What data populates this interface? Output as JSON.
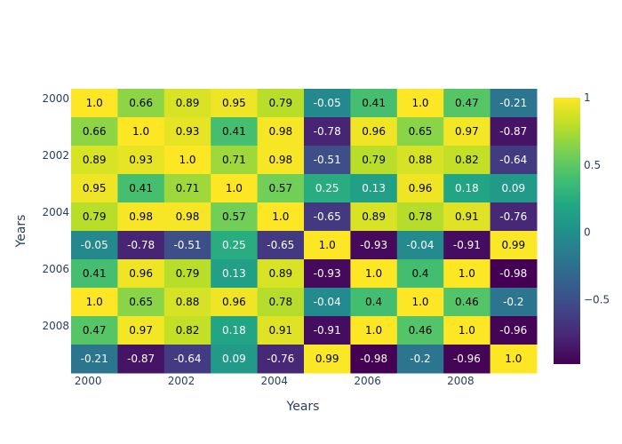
{
  "chart_data": {
    "type": "heatmap",
    "xlabel": "Years",
    "ylabel": "Years",
    "x": [
      2000,
      2001,
      2002,
      2003,
      2004,
      2005,
      2006,
      2007,
      2008,
      2009
    ],
    "y": [
      2000,
      2001,
      2002,
      2003,
      2004,
      2005,
      2006,
      2007,
      2008,
      2009
    ],
    "x_tick_labels": [
      "2000",
      "2002",
      "2004",
      "2006",
      "2008"
    ],
    "y_tick_labels": [
      "2000",
      "2002",
      "2004",
      "2006",
      "2008"
    ],
    "z_display": [
      [
        "1.0",
        "0.66",
        "0.89",
        "0.95",
        "0.79",
        "-0.05",
        "0.41",
        "1.0",
        "0.47",
        "-0.21"
      ],
      [
        "0.66",
        "1.0",
        "0.93",
        "0.41",
        "0.98",
        "-0.78",
        "0.96",
        "0.65",
        "0.97",
        "-0.87"
      ],
      [
        "0.89",
        "0.93",
        "1.0",
        "0.71",
        "0.98",
        "-0.51",
        "0.79",
        "0.88",
        "0.82",
        "-0.64"
      ],
      [
        "0.95",
        "0.41",
        "0.71",
        "1.0",
        "0.57",
        "0.25",
        "0.13",
        "0.96",
        "0.18",
        "0.09"
      ],
      [
        "0.79",
        "0.98",
        "0.98",
        "0.57",
        "1.0",
        "-0.65",
        "0.89",
        "0.78",
        "0.91",
        "-0.76"
      ],
      [
        "-0.05",
        "-0.78",
        "-0.51",
        "0.25",
        "-0.65",
        "1.0",
        "-0.93",
        "-0.04",
        "-0.91",
        "0.99"
      ],
      [
        "0.41",
        "0.96",
        "0.79",
        "0.13",
        "0.89",
        "-0.93",
        "1.0",
        "0.4",
        "1.0",
        "-0.98"
      ],
      [
        "1.0",
        "0.65",
        "0.88",
        "0.96",
        "0.78",
        "-0.04",
        "0.4",
        "1.0",
        "0.46",
        "-0.2"
      ],
      [
        "0.47",
        "0.97",
        "0.82",
        "0.18",
        "0.91",
        "-0.91",
        "1.0",
        "0.46",
        "1.0",
        "-0.96"
      ],
      [
        "-0.21",
        "-0.87",
        "-0.64",
        "0.09",
        "-0.76",
        "0.99",
        "-0.98",
        "-0.2",
        "-0.96",
        "1.0"
      ]
    ],
    "colorscale": "Viridis",
    "zrange": [
      -0.98,
      1.0
    ],
    "colorbar_ticks": [
      {
        "value": 1,
        "label": "1"
      },
      {
        "value": 0.5,
        "label": "0.5"
      },
      {
        "value": 0,
        "label": "0"
      },
      {
        "value": -0.5,
        "label": "−0.5"
      }
    ],
    "grid": false
  }
}
